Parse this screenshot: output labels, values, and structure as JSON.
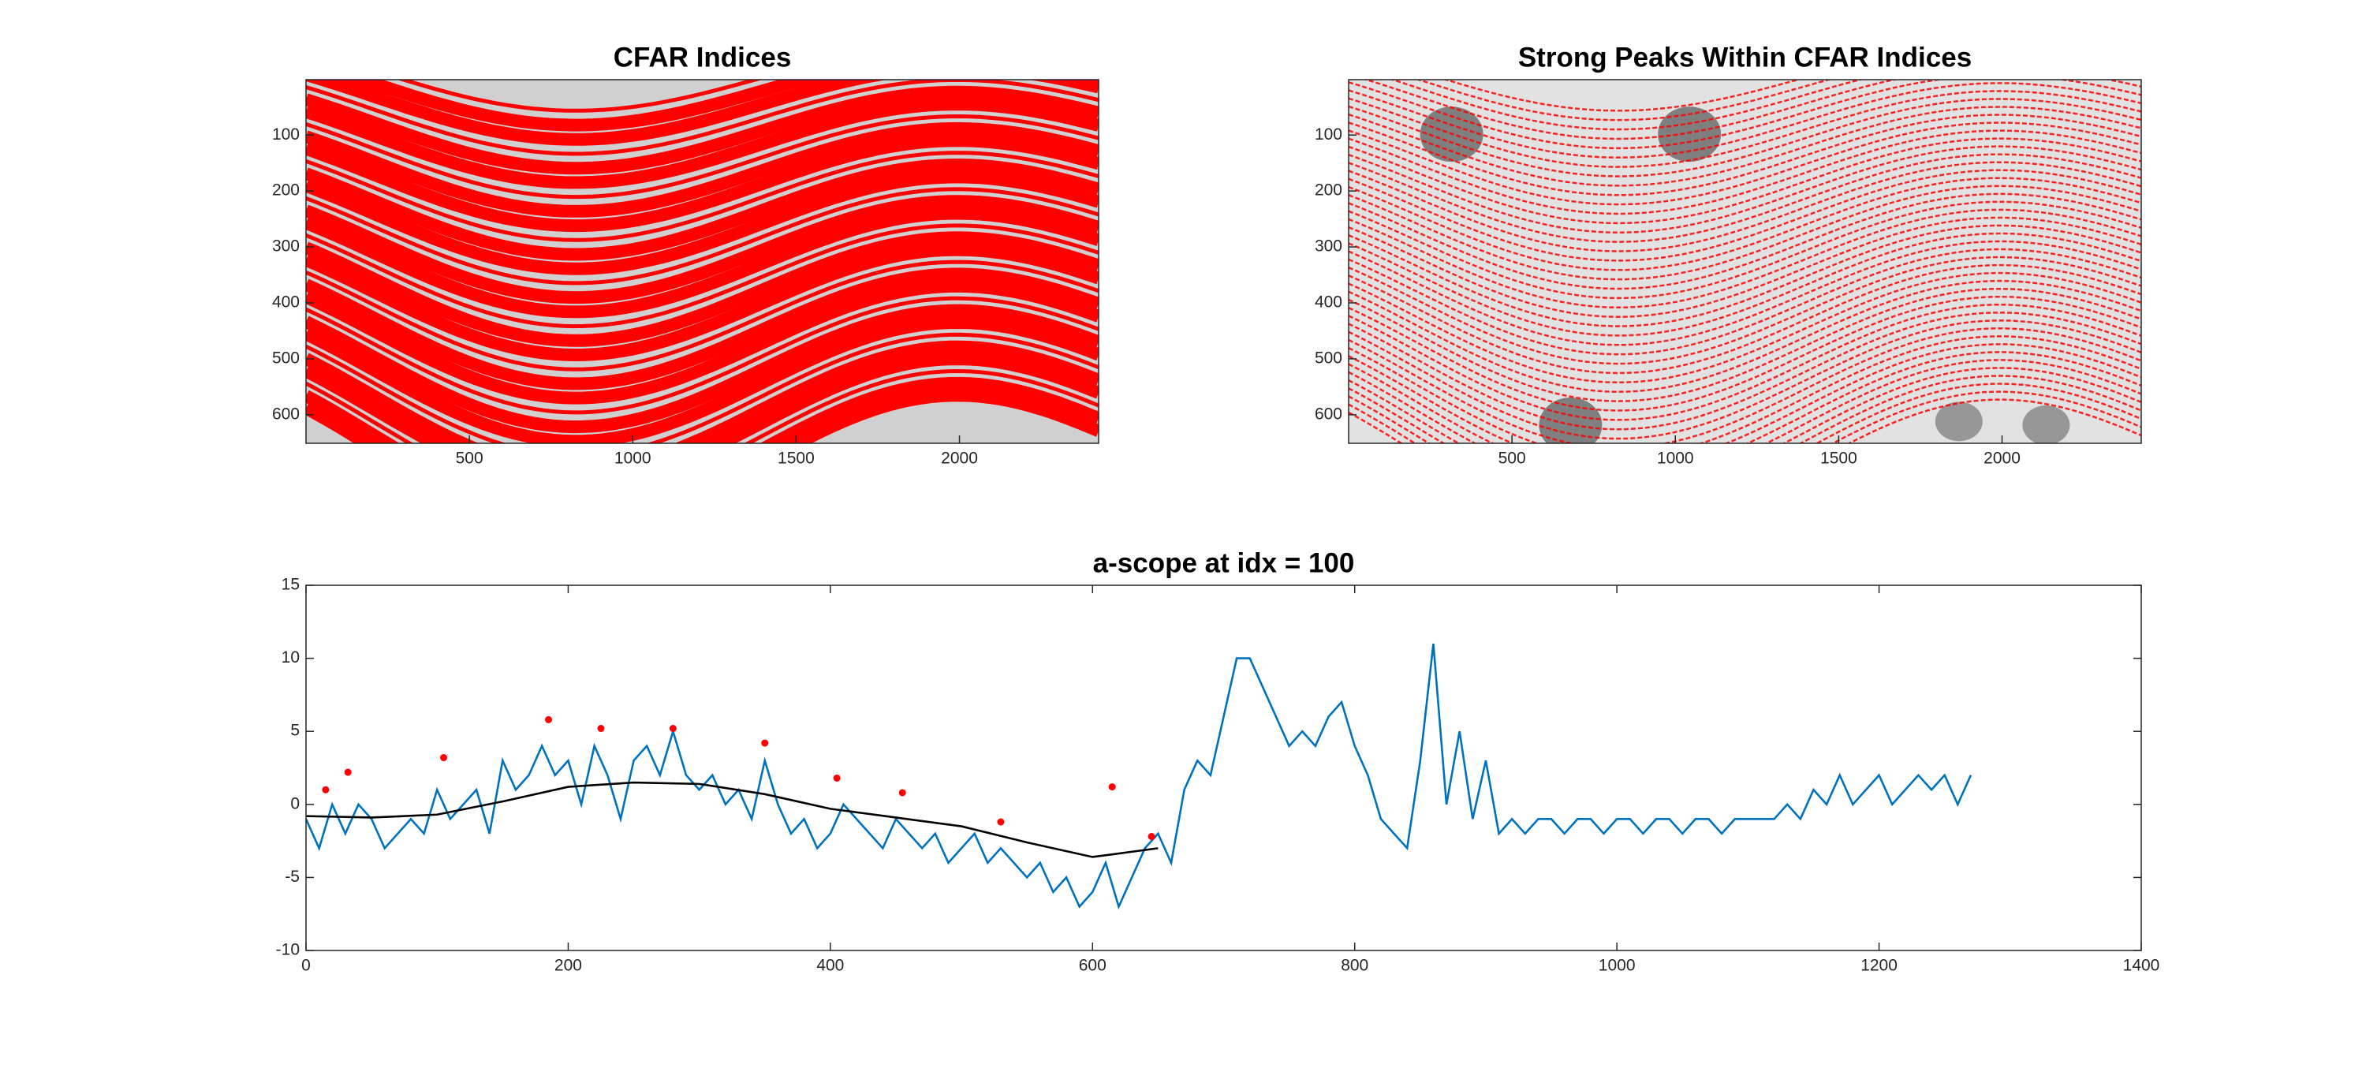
{
  "chart_data": [
    {
      "type": "image",
      "title": "CFAR Indices",
      "style": "dense",
      "xlim": [
        0,
        2426
      ],
      "ylim": [
        1,
        651
      ],
      "reverse_y": true,
      "xticks": [
        500,
        1000,
        1500,
        2000
      ],
      "yticks": [
        100,
        200,
        300,
        400,
        500,
        600
      ]
    },
    {
      "type": "image",
      "title": "Strong Peaks Within CFAR Indices",
      "style": "sparse",
      "xlim": [
        0,
        2426
      ],
      "ylim": [
        1,
        651
      ],
      "reverse_y": true,
      "xticks": [
        500,
        1000,
        1500,
        2000
      ],
      "yticks": [
        100,
        200,
        300,
        400,
        500,
        600
      ]
    },
    {
      "type": "line",
      "title": "a-scope at idx = 100",
      "xlim": [
        0,
        1400
      ],
      "ylim": [
        -10,
        15
      ],
      "xticks": [
        0,
        200,
        400,
        600,
        800,
        1000,
        1200,
        1400
      ],
      "yticks": [
        -10,
        -5,
        0,
        5,
        10,
        15
      ],
      "box": true,
      "series": [
        {
          "color": "#0072bd",
          "x": [
            0,
            10,
            20,
            30,
            40,
            50,
            60,
            70,
            80,
            90,
            100,
            110,
            120,
            130,
            140,
            150,
            160,
            170,
            180,
            190,
            200,
            210,
            220,
            230,
            240,
            250,
            260,
            270,
            280,
            290,
            300,
            310,
            320,
            330,
            340,
            350,
            360,
            370,
            380,
            390,
            400,
            410,
            420,
            430,
            440,
            450,
            460,
            470,
            480,
            490,
            500,
            510,
            520,
            530,
            540,
            550,
            560,
            570,
            580,
            590,
            600,
            610,
            620,
            630,
            640,
            650,
            660,
            670,
            680,
            690,
            700,
            710,
            720,
            730,
            740,
            750,
            760,
            770,
            780,
            790,
            800,
            810,
            820,
            830,
            840,
            850,
            860,
            870,
            880,
            890,
            900,
            910,
            920,
            930,
            940,
            950,
            960,
            970,
            980,
            990,
            1000,
            1010,
            1020,
            1030,
            1040,
            1050,
            1060,
            1070,
            1080,
            1090,
            1100,
            1110,
            1120,
            1130,
            1140,
            1150,
            1160,
            1170,
            1180,
            1190,
            1200,
            1210,
            1220,
            1230,
            1240,
            1250,
            1260,
            1270
          ],
          "values": [
            -1,
            -3,
            0,
            -2,
            0,
            -1,
            -3,
            -2,
            -1,
            -2,
            1,
            -1,
            0,
            1,
            -2,
            3,
            1,
            2,
            4,
            2,
            3,
            0,
            4,
            2,
            -1,
            3,
            4,
            2,
            5,
            2,
            1,
            2,
            0,
            1,
            -1,
            3,
            0,
            -2,
            -1,
            -3,
            -2,
            0,
            -1,
            -2,
            -3,
            -1,
            -2,
            -3,
            -2,
            -4,
            -3,
            -2,
            -4,
            -3,
            -4,
            -5,
            -4,
            -6,
            -5,
            -7,
            -6,
            -4,
            -7,
            -5,
            -3,
            -2,
            -4,
            1,
            3,
            2,
            6,
            10,
            10,
            8,
            6,
            4,
            5,
            4,
            6,
            7,
            4,
            2,
            -1,
            -2,
            -3,
            3,
            11,
            0,
            5,
            -1,
            3,
            -2,
            -1,
            -2,
            -1,
            -1,
            -2,
            -1,
            -1,
            -2,
            -1,
            -1,
            -2,
            -1,
            -1,
            -2,
            -1,
            -1,
            -2,
            -1,
            -1,
            -1,
            -1,
            0,
            -1,
            1,
            0,
            2,
            0,
            1,
            2,
            0,
            1,
            2,
            1,
            2,
            0,
            2
          ]
        },
        {
          "color": "#000000",
          "x": [
            0,
            50,
            100,
            150,
            200,
            250,
            300,
            350,
            400,
            450,
            500,
            550,
            600,
            650
          ],
          "values": [
            -0.8,
            -0.9,
            -0.7,
            0.2,
            1.2,
            1.5,
            1.4,
            0.7,
            -0.3,
            -0.9,
            -1.5,
            -2.6,
            -3.6,
            -3.0
          ]
        },
        {
          "color": "#ff0000",
          "markers": true,
          "x": [
            15,
            32,
            105,
            185,
            225,
            280,
            350,
            405,
            455,
            530,
            615,
            645
          ],
          "values": [
            1,
            2.2,
            3.2,
            5.8,
            5.2,
            5.2,
            4.2,
            1.8,
            0.8,
            -1.2,
            1.2,
            -2.2
          ]
        }
      ]
    }
  ]
}
